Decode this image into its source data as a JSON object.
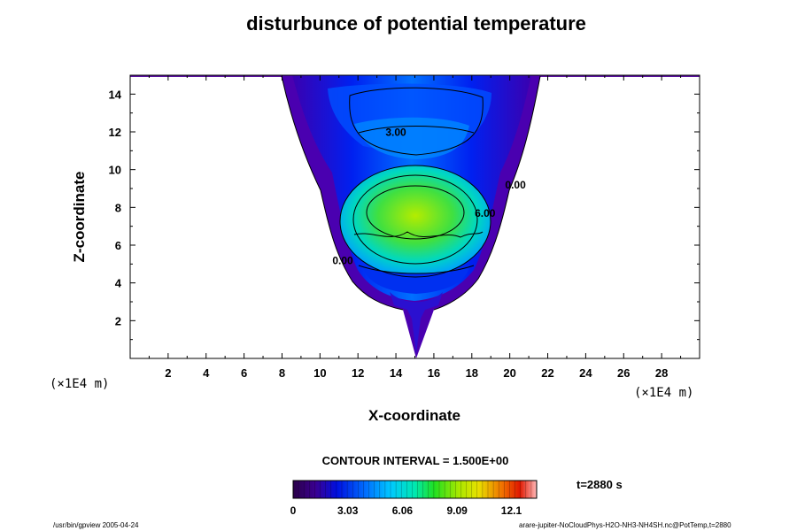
{
  "chart_data": {
    "type": "heatmap",
    "title": "disturbunce of potential temperature",
    "xlabel": "X-coordinate",
    "ylabel": "Z-coordinate",
    "x_unit": "(×1E4 m)",
    "z_unit": "(×1E4 m)",
    "xlim": [
      0,
      30
    ],
    "ylim": [
      0,
      15
    ],
    "x_ticks": [
      2,
      4,
      6,
      8,
      10,
      12,
      14,
      16,
      18,
      20,
      22,
      24,
      26,
      28
    ],
    "y_ticks": [
      2,
      4,
      6,
      8,
      10,
      12,
      14
    ],
    "contour_interval_text": "CONTOUR INTERVAL = 1.500E+00",
    "contour_labels": [
      {
        "text": "3.00",
        "x": 14.0,
        "z": 11.8
      },
      {
        "text": "0.00",
        "x": 20.3,
        "z": 9.0
      },
      {
        "text": "6.00",
        "x": 18.7,
        "z": 7.5
      },
      {
        "text": "0.00",
        "x": 11.2,
        "z": 5.0
      }
    ],
    "field": {
      "plume_center_x": 15.0,
      "warm_core": {
        "x": 15.0,
        "z": 7.6,
        "max_value": 9.5
      },
      "plume_top_z": 14.9,
      "plume_width_at_top": [
        8.5,
        21.5
      ],
      "plume_width_at_z4": [
        11.0,
        18.9
      ]
    },
    "colorbar": {
      "min": 0,
      "max": 13.5,
      "ticks": [
        0,
        3.03,
        6.06,
        9.09,
        12.1
      ],
      "tick_labels": [
        "0",
        "3.03",
        "6.06",
        "9.09",
        "12.1"
      ]
    },
    "time_label": "t=2880 s"
  },
  "footer": {
    "left": "/usr/bin/gpview 2005-04-24",
    "right": "arare-jupiter-NoCloudPhys-H2O-NH3-NH4SH.nc@PotTemp,t=2880"
  }
}
